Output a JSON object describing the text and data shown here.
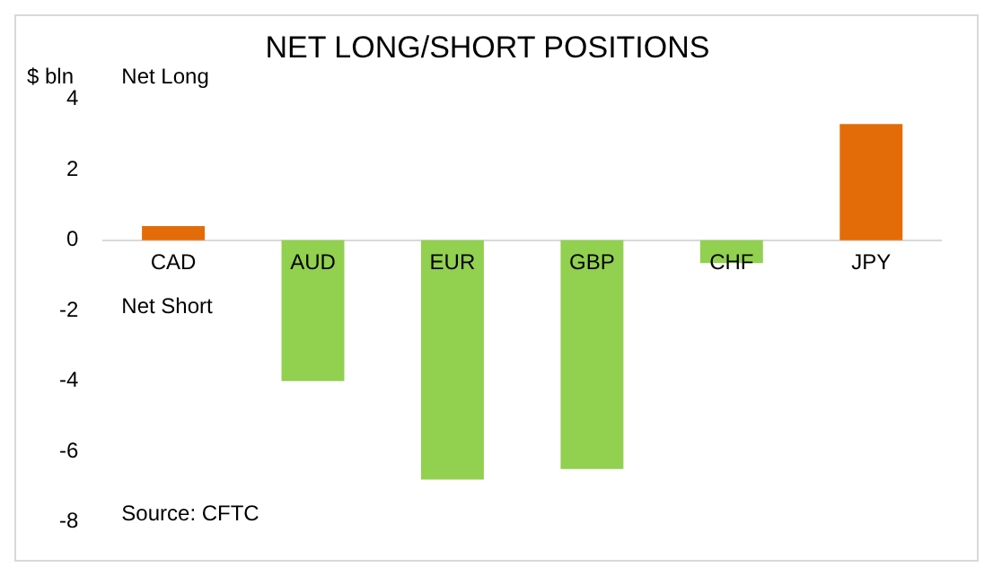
{
  "chart_data": {
    "type": "bar",
    "title": "NET LONG/SHORT POSITIONS",
    "ylabel": "$ bln",
    "categories": [
      "CAD",
      "AUD",
      "EUR",
      "GBP",
      "CHF",
      "JPY"
    ],
    "values": [
      0.4,
      -4.0,
      -6.8,
      -6.5,
      -0.65,
      3.3
    ],
    "colors": [
      "#e36c09",
      "#92d050",
      "#92d050",
      "#92d050",
      "#92d050",
      "#e36c09"
    ],
    "ylim": [
      -8,
      4
    ],
    "yticks": [
      -8,
      -6,
      -4,
      -2,
      0,
      2,
      4
    ],
    "grid": false,
    "legend": false,
    "annotations": [
      "Net Long",
      "Net Short",
      "Source: CFTC"
    ]
  }
}
